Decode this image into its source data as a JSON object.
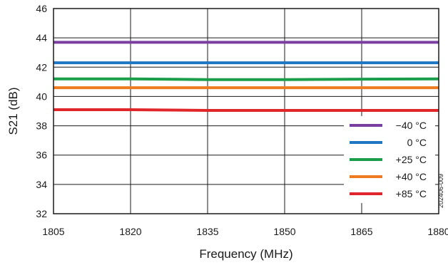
{
  "chart_data": {
    "type": "line",
    "xlabel": "Frequency (MHz)",
    "ylabel": "S21 (dB)",
    "xlim": [
      1805,
      1880
    ],
    "ylim": [
      32,
      46
    ],
    "xticks": [
      1805,
      1820,
      1835,
      1850,
      1865,
      1880
    ],
    "yticks": [
      32,
      34,
      36,
      38,
      40,
      42,
      44,
      46
    ],
    "grid": true,
    "legend_position": "bottom-right",
    "figure_id": "202406-009",
    "series": [
      {
        "name": "−40 °C",
        "color": "#7b3fa0",
        "x": [
          1805,
          1820,
          1835,
          1850,
          1865,
          1880
        ],
        "y": [
          43.7,
          43.7,
          43.7,
          43.7,
          43.7,
          43.7
        ]
      },
      {
        "name": "0 °C",
        "color": "#1f77c4",
        "x": [
          1805,
          1820,
          1835,
          1850,
          1865,
          1880
        ],
        "y": [
          42.3,
          42.3,
          42.3,
          42.3,
          42.3,
          42.3
        ]
      },
      {
        "name": "+25 °C",
        "color": "#1a9e4a",
        "x": [
          1805,
          1820,
          1835,
          1850,
          1865,
          1880
        ],
        "y": [
          41.2,
          41.2,
          41.15,
          41.15,
          41.18,
          41.2
        ]
      },
      {
        "name": "+40 °C",
        "color": "#f07a22",
        "x": [
          1805,
          1820,
          1835,
          1850,
          1865,
          1880
        ],
        "y": [
          40.6,
          40.6,
          40.6,
          40.6,
          40.6,
          40.6
        ]
      },
      {
        "name": "+85 °C",
        "color": "#e0262a",
        "x": [
          1805,
          1820,
          1835,
          1850,
          1865,
          1880
        ],
        "y": [
          39.1,
          39.1,
          39.05,
          39.05,
          39.05,
          39.05
        ]
      }
    ]
  }
}
